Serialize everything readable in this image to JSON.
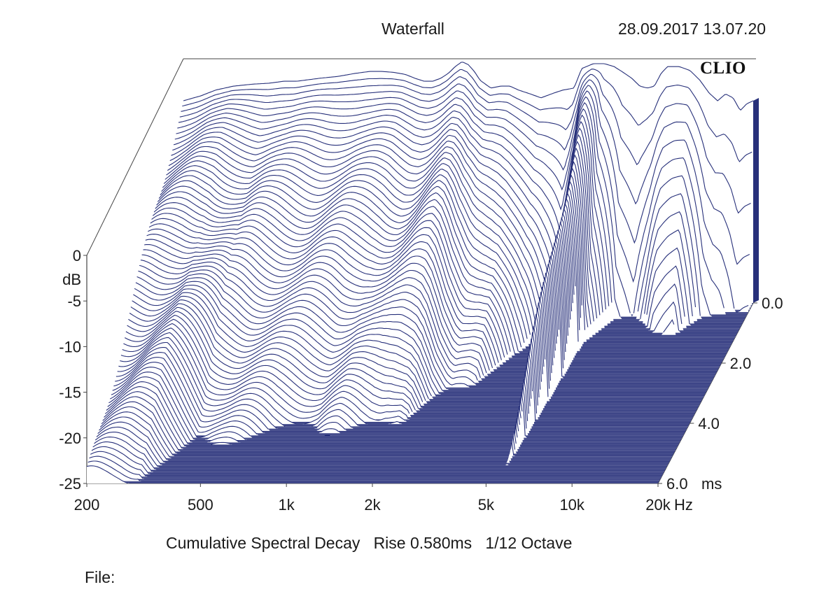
{
  "header": {
    "title": "Waterfall",
    "timestamp": "28.09.2017 13.07.20",
    "brand": "CLIO"
  },
  "footer": {
    "subtitle": "Cumulative Spectral Decay   Rise 0.580ms   1/12 Octave",
    "file_label": "File:"
  },
  "colors": {
    "trace": "#27307a",
    "floor": "#27307a",
    "frame": "#444444"
  },
  "chart_data": {
    "type": "waterfall",
    "title": "Waterfall",
    "subtitle": "Cumulative Spectral Decay   Rise 0.580ms   1/12 Octave",
    "x_axis": {
      "scale": "log",
      "range": [
        200,
        20000
      ],
      "unit": "Hz",
      "ticks": [
        200,
        500,
        1000,
        2000,
        5000,
        10000,
        20000
      ],
      "tick_labels": [
        "200",
        "500",
        "1k",
        "2k",
        "5k",
        "10k",
        "20k"
      ]
    },
    "y_axis": {
      "unit": "dB",
      "range": [
        -25,
        0
      ],
      "ticks": [
        0,
        -5,
        -10,
        -15,
        -20,
        -25
      ],
      "tick_labels": [
        "0",
        "-5",
        "-10",
        "-15",
        "-20",
        "-25"
      ]
    },
    "z_axis": {
      "unit": "ms",
      "range": [
        0,
        6
      ],
      "ticks": [
        0,
        2,
        4,
        6
      ],
      "tick_labels": [
        "0.0",
        "2.0",
        "4.0",
        "6.0"
      ]
    },
    "rise_ms": 0.58,
    "smoothing": "1/12 Octave",
    "slices": 80,
    "initial_response": {
      "freq_hz": [
        200,
        230,
        260,
        300,
        350,
        400,
        450,
        500,
        600,
        700,
        800,
        900,
        1000,
        1100,
        1200,
        1300,
        1400,
        1500,
        1600,
        1700,
        1800,
        1900,
        2000,
        2100,
        2200,
        2400,
        2600,
        2800,
        3000,
        3300,
        3600,
        4000,
        4300,
        4700,
        5000,
        5500,
        6000,
        6500,
        7000,
        7500,
        8000,
        8500,
        9000,
        9500,
        10000,
        11000,
        12000,
        13000,
        14000,
        15000,
        16000,
        17000,
        18000,
        19000,
        20000
      ],
      "level_db": [
        -4.3,
        -3.8,
        -3.2,
        -2.8,
        -2.6,
        -2.5,
        -2.3,
        -2.3,
        -2.0,
        -1.8,
        -1.5,
        -1.3,
        -1.3,
        -1.4,
        -1.6,
        -2.0,
        -2.3,
        -2.3,
        -2.0,
        -1.5,
        -0.8,
        -0.3,
        -0.6,
        -1.3,
        -2.2,
        -3.0,
        -2.8,
        -2.8,
        -3.2,
        -3.6,
        -4.0,
        -3.5,
        -3.2,
        -3.0,
        -1.0,
        -0.5,
        -0.5,
        -0.8,
        -1.4,
        -2.0,
        -2.8,
        -3.0,
        -2.8,
        -1.5,
        -0.8,
        -0.8,
        -1.2,
        -2.2,
        -3.5,
        -4.3,
        -3.6,
        -4.0,
        -5.3,
        -4.6,
        -4.3
      ]
    },
    "decay_ms_by_freq": {
      "freq_hz": [
        200,
        300,
        400,
        500,
        700,
        1000,
        1200,
        1500,
        1700,
        2000,
        2500,
        3000,
        4000,
        4500,
        5000,
        5500,
        6000,
        7000,
        8000,
        10000,
        12000,
        14000,
        16000,
        18000,
        20000
      ],
      "decay_ms": [
        6.0,
        5.7,
        4.2,
        4.0,
        3.7,
        3.5,
        3.6,
        3.6,
        3.6,
        3.3,
        2.6,
        2.4,
        1.2,
        0.8,
        1.4,
        4.8,
        1.2,
        0.5,
        0.4,
        0.8,
        1.0,
        0.5,
        0.4,
        0.3,
        0.3
      ]
    }
  }
}
